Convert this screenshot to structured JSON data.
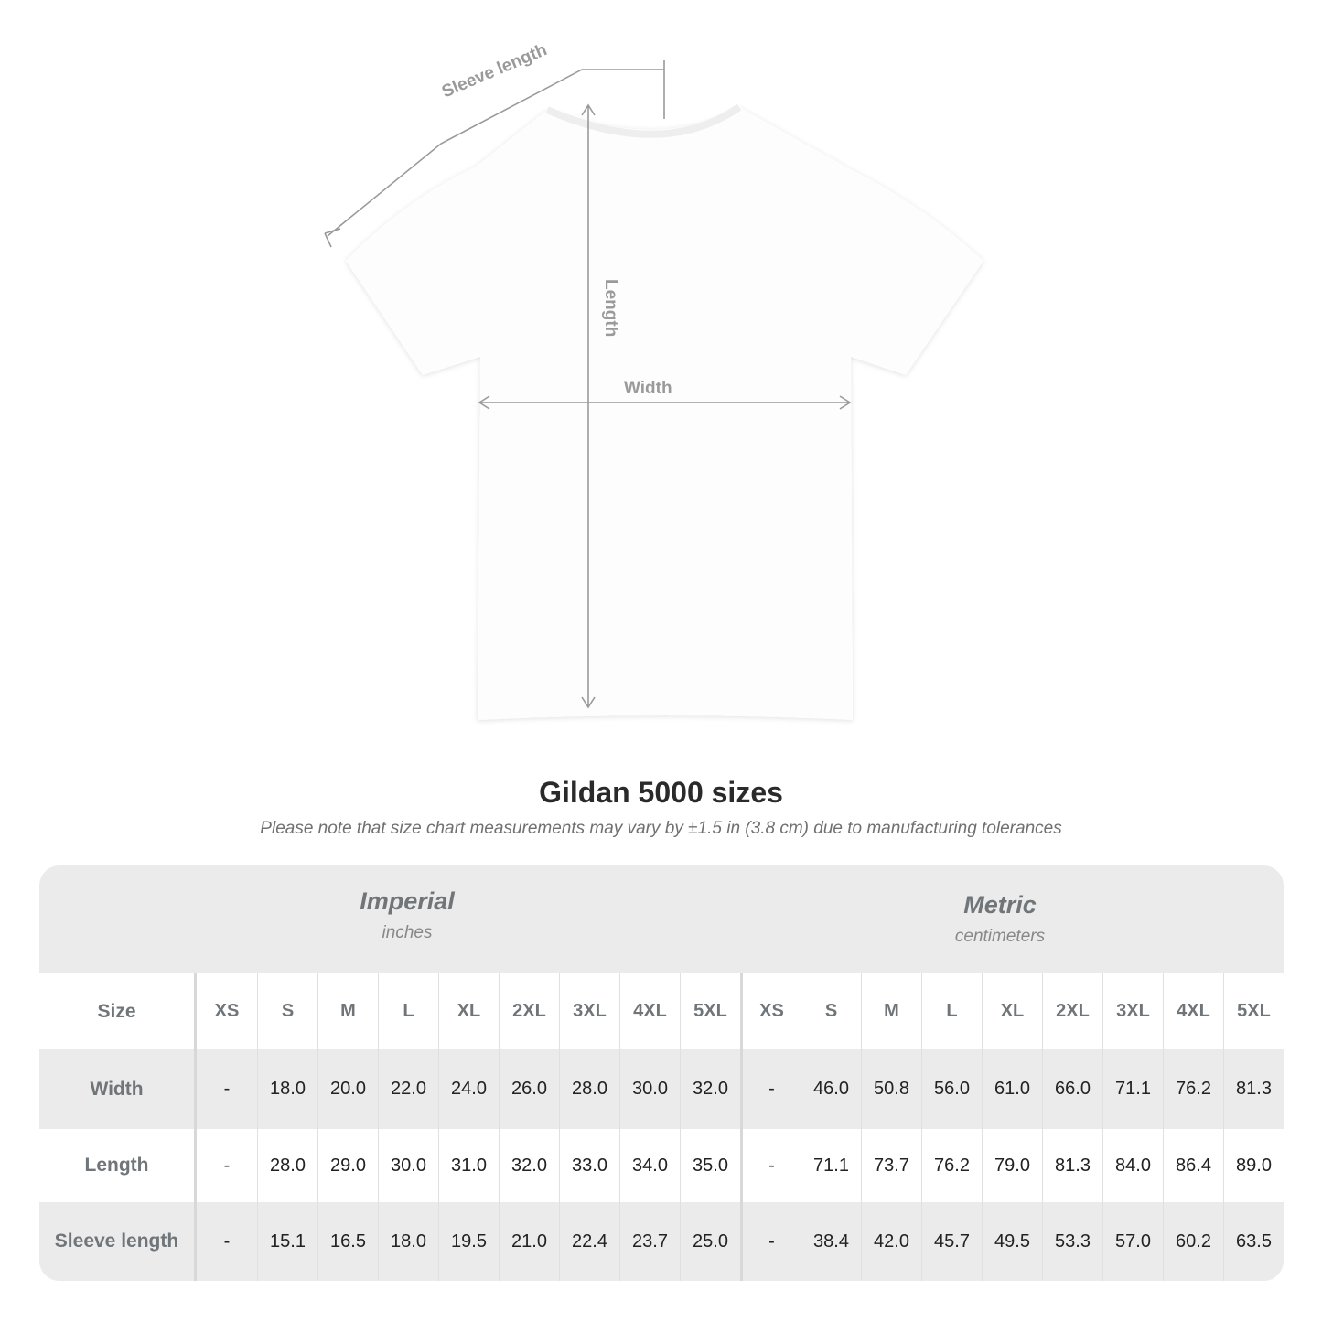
{
  "diagram": {
    "sleeve_label": "Sleeve length",
    "length_label": "Length",
    "width_label": "Width",
    "line_color": "#9a9a9a"
  },
  "title": "Gildan 5000 sizes",
  "note": "Please note that size chart measurements may vary by ±1.5 in (3.8 cm) due to manufacturing tolerances",
  "table": {
    "imperial": {
      "name": "Imperial",
      "unit": "inches"
    },
    "metric": {
      "name": "Metric",
      "unit": "centimeters"
    },
    "size_label": "Size",
    "sizes": [
      "XS",
      "S",
      "M",
      "L",
      "XL",
      "2XL",
      "3XL",
      "4XL",
      "5XL"
    ],
    "rows": [
      {
        "label": "Width",
        "imperial": [
          "-",
          "18.0",
          "20.0",
          "22.0",
          "24.0",
          "26.0",
          "28.0",
          "30.0",
          "32.0"
        ],
        "metric": [
          "-",
          "46.0",
          "50.8",
          "56.0",
          "61.0",
          "66.0",
          "71.1",
          "76.2",
          "81.3"
        ]
      },
      {
        "label": "Length",
        "imperial": [
          "-",
          "28.0",
          "29.0",
          "30.0",
          "31.0",
          "32.0",
          "33.0",
          "34.0",
          "35.0"
        ],
        "metric": [
          "-",
          "71.1",
          "73.7",
          "76.2",
          "79.0",
          "81.3",
          "84.0",
          "86.4",
          "89.0"
        ]
      },
      {
        "label": "Sleeve length",
        "imperial": [
          "-",
          "15.1",
          "16.5",
          "18.0",
          "19.5",
          "21.0",
          "22.4",
          "23.7",
          "25.0"
        ],
        "metric": [
          "-",
          "38.4",
          "42.0",
          "45.7",
          "49.5",
          "53.3",
          "57.0",
          "60.2",
          "63.5"
        ]
      }
    ],
    "header_bg": "#ebebeb",
    "label_color": "#6f7578"
  }
}
